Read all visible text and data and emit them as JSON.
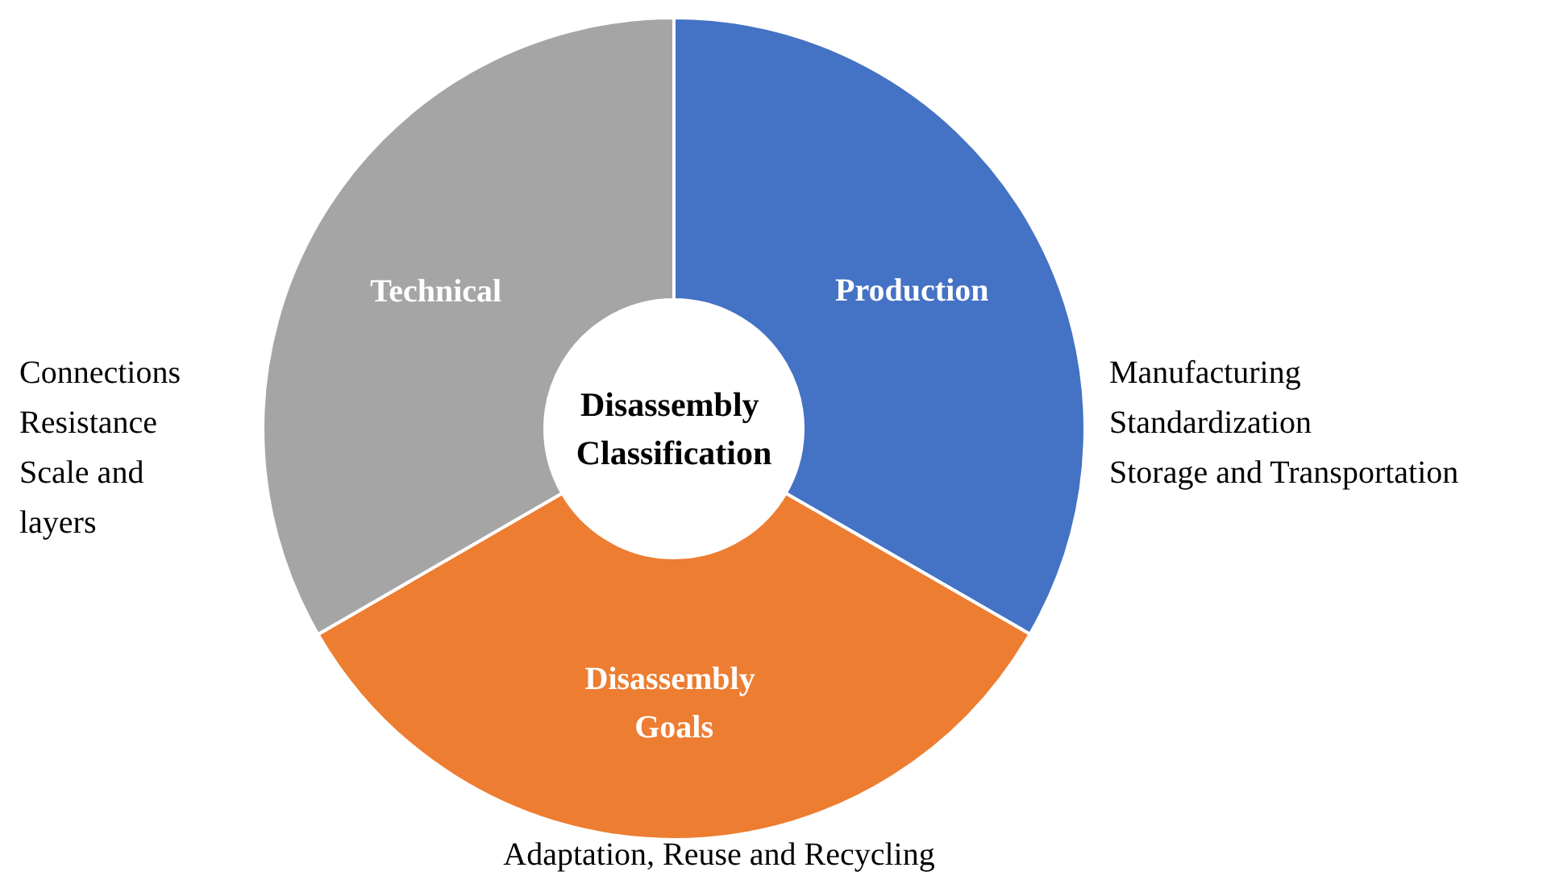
{
  "chart_data": {
    "type": "donut",
    "title": "Disassembly Classification",
    "categories": [
      "Production",
      "Disassembly Goals",
      "Technical"
    ],
    "values": [
      33.33,
      33.33,
      33.34
    ],
    "colors": [
      "#4472c4",
      "#ed7d31",
      "#a5a5a5"
    ],
    "annotations": [
      "Manufacturing\nStandardization\nStorage and Transportation",
      "Adaptation, Reuse and Recycling",
      "Connections\nResistance\nScale and\nlayers"
    ]
  }
}
